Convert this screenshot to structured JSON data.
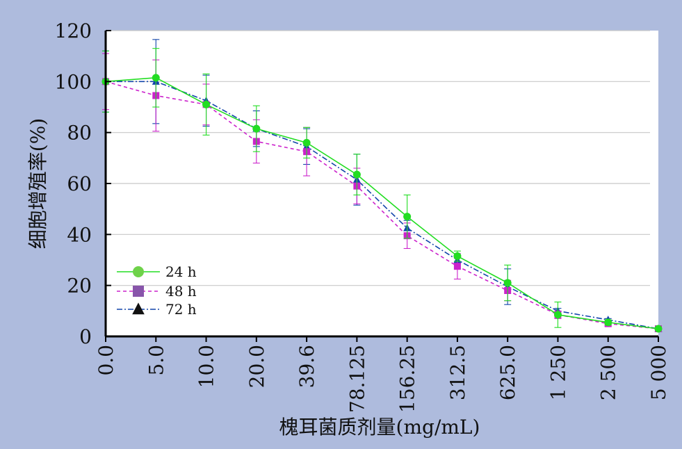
{
  "chart_data": {
    "type": "line",
    "title": "",
    "xlabel": "槐耳菌质剂量(mg/mL)",
    "ylabel": "细胞增殖率(%)",
    "categories": [
      "0.0",
      "5.0",
      "10.0",
      "20.0",
      "39.6",
      "78.125",
      "156.25",
      "312.5",
      "625.0",
      "1 250",
      "2 500",
      "5 000"
    ],
    "ylim": [
      0,
      120
    ],
    "yticks": [
      0,
      20,
      40,
      60,
      80,
      100,
      120
    ],
    "grid": true,
    "legend_position": "bottom-left",
    "series": [
      {
        "name": "24 h",
        "color": "#22dd22",
        "legend_color": "#6fd24a",
        "marker": "circle",
        "line_style": "solid",
        "values": [
          100,
          101.5,
          91,
          81.5,
          76,
          63.5,
          47,
          31.5,
          21,
          8.5,
          5.5,
          3
        ],
        "errors": [
          12,
          11.5,
          12,
          9,
          6,
          8,
          8.5,
          2,
          7,
          5,
          1,
          0.5
        ]
      },
      {
        "name": "48 h",
        "color": "#cc22cc",
        "legend_color": "#8855aa",
        "marker": "square",
        "line_style": "dashed",
        "values": [
          100,
          94.5,
          91,
          76.5,
          72.5,
          59,
          39.5,
          27.5,
          18,
          8.5,
          5,
          3
        ],
        "errors": [
          11,
          14,
          8,
          8.5,
          9.5,
          7,
          5,
          5,
          4,
          1.5,
          1,
          0.5
        ]
      },
      {
        "name": "72 h",
        "color": "#1144aa",
        "legend_color": "#111111",
        "marker": "triangle",
        "line_style": "dashdot",
        "values": [
          100,
          100,
          92.5,
          81.5,
          74.5,
          61.5,
          42.5,
          30,
          19.5,
          10,
          6.5,
          3
        ],
        "errors": [
          12,
          16.5,
          10,
          7,
          7,
          10,
          3,
          1.5,
          7,
          1,
          0.5,
          0.5
        ]
      }
    ]
  }
}
